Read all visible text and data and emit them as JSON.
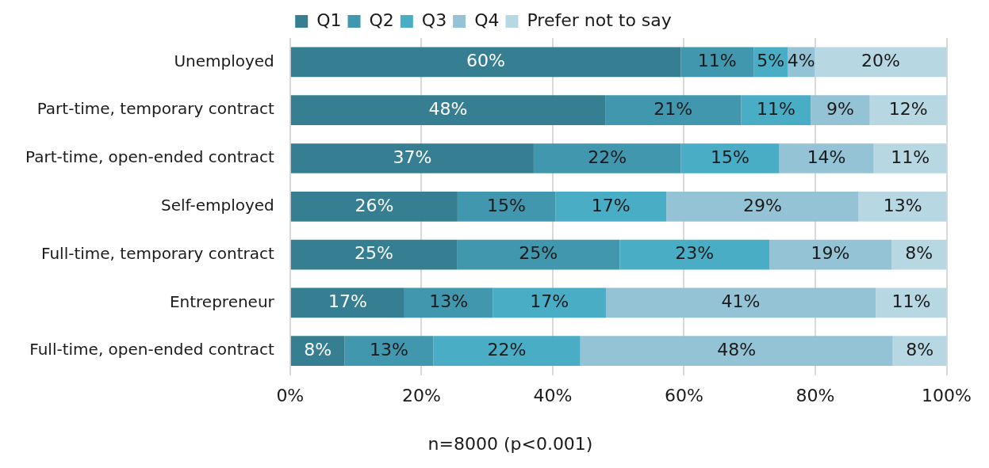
{
  "chart_data": {
    "type": "bar",
    "orientation": "horizontal",
    "stacked": true,
    "categories": [
      "Unemployed",
      "Part-time, temporary contract",
      "Part-time, open-ended contract",
      "Self-employed",
      "Full-time, temporary contract",
      "Entrepreneur",
      "Full-time, open-ended contract"
    ],
    "series": [
      {
        "name": "Q1",
        "color": "#367f93",
        "values": [
          59.5,
          48.0,
          37.1,
          25.5,
          25.4,
          17.4,
          8.3
        ],
        "value_labels": [
          "60%",
          "48%",
          "37%",
          "26%",
          "25%",
          "17%",
          "8%"
        ]
      },
      {
        "name": "Q2",
        "color": "#4197ad",
        "values": [
          11.1,
          20.7,
          22.4,
          14.9,
          24.8,
          13.5,
          13.5
        ],
        "value_labels": [
          "11%",
          "21%",
          "22%",
          "15%",
          "25%",
          "13%",
          "13%"
        ]
      },
      {
        "name": "Q3",
        "color": "#4aadc6",
        "values": [
          5.2,
          10.6,
          15.0,
          16.9,
          22.8,
          17.2,
          22.4
        ],
        "value_labels": [
          "5%",
          "11%",
          "15%",
          "17%",
          "23%",
          "17%",
          "22%"
        ]
      },
      {
        "name": "Q4",
        "color": "#93c3d5",
        "values": [
          4.1,
          9.0,
          14.4,
          29.3,
          18.6,
          41.1,
          47.6
        ],
        "value_labels": [
          "4%",
          "9%",
          "14%",
          "29%",
          "19%",
          "41%",
          "48%"
        ]
      },
      {
        "name": "Prefer not to say",
        "color": "#b7d7e3",
        "values": [
          20.1,
          11.7,
          11.1,
          13.4,
          8.4,
          10.8,
          8.2
        ],
        "value_labels": [
          "20%",
          "12%",
          "11%",
          "13%",
          "8%",
          "11%",
          "8%"
        ]
      }
    ],
    "xlim": [
      0,
      100
    ],
    "xticks": [
      {
        "value": 0,
        "label": "0%"
      },
      {
        "value": 20,
        "label": "20%"
      },
      {
        "value": 40,
        "label": "40%"
      },
      {
        "value": 60,
        "label": "60%"
      },
      {
        "value": 80,
        "label": "80%"
      },
      {
        "value": 100,
        "label": "100%"
      }
    ],
    "grid": "x",
    "legend": "top",
    "annotations": [
      "n=8000 (p<0.001)"
    ]
  }
}
